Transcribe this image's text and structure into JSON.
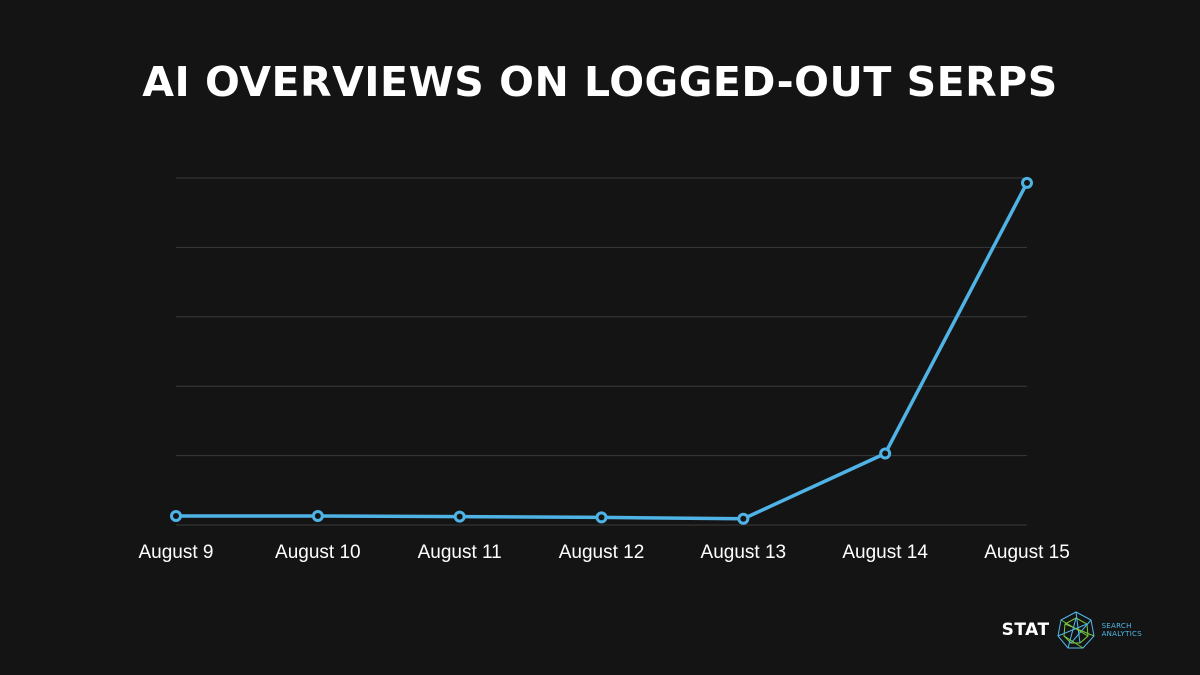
{
  "title": "AI OVERVIEWS ON LOGGED-OUT SERPS",
  "chart_data": {
    "type": "line",
    "title": "AI OVERVIEWS ON LOGGED-OUT SERPS",
    "xlabel": "",
    "ylabel": "",
    "categories": [
      "August 9",
      "August 10",
      "August 11",
      "August 12",
      "August 13",
      "August 14",
      "August 15"
    ],
    "series": [
      {
        "values": [
          0.13,
          0.13,
          0.12,
          0.11,
          0.09,
          1.03,
          4.93
        ]
      }
    ],
    "ylim": [
      0,
      5
    ],
    "y_ticks_labeled": false,
    "grid": true,
    "line_color": "#4fb3e6",
    "grid_color": "#3a3a3a"
  },
  "logo": {
    "word": "STAT",
    "tag_line1": "SEARCH",
    "tag_line2": "ANALYTICS",
    "accent": "#4fb8e8"
  }
}
